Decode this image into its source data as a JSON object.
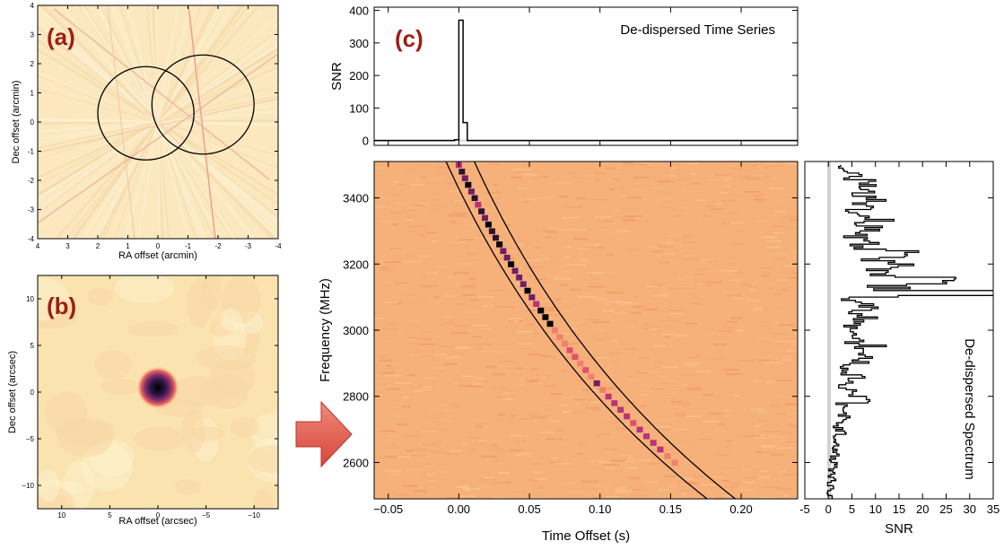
{
  "chart_data": [
    {
      "type": "heatmap",
      "panel_label": "(a)",
      "xlabel": "RA offset (arcmin)",
      "ylabel": "Dec offset (arcmin)",
      "xlim": [
        4,
        -4
      ],
      "ylim": [
        -4,
        4
      ],
      "xticks": [
        4,
        3,
        2,
        1,
        0,
        -1,
        -2,
        -3,
        -4
      ],
      "xticklabels": [
        "4",
        "3",
        "2",
        "1",
        "0",
        "-1",
        "-2",
        "-3",
        "-4"
      ],
      "yticks": [
        -4,
        -3,
        -2,
        -1,
        0,
        1,
        2,
        3,
        4
      ],
      "yticklabels": [
        "-4",
        "-3",
        "-2",
        "-1",
        "0",
        "1",
        "2",
        "3",
        "4"
      ],
      "circles": [
        {
          "center": [
            0.4,
            0.3
          ],
          "radius": 1.6
        },
        {
          "center": [
            -1.5,
            0.6
          ],
          "radius": 1.7
        }
      ],
      "source": {
        "ra": -0.85,
        "dec": 1.3
      }
    },
    {
      "type": "heatmap",
      "panel_label": "(b)",
      "xlabel": "RA offset (arcsec)",
      "ylabel": "Dec offset (arcsec)",
      "xlim": [
        12.5,
        -12.5
      ],
      "ylim": [
        -12.5,
        12.5
      ],
      "xticks": [
        10,
        5,
        0,
        -5,
        -10
      ],
      "xticklabels": [
        "10",
        "5",
        "0",
        "−5",
        "−10"
      ],
      "yticks": [
        -10,
        -5,
        0,
        5,
        10
      ],
      "yticklabels": [
        "−10",
        "−5",
        "0",
        "5",
        "10"
      ],
      "source": {
        "ra": 0,
        "dec": 0
      }
    },
    {
      "type": "line",
      "panel_label": "(c)",
      "title": "De-dispersed Time Series",
      "ylabel": "SNR",
      "xlim": [
        -0.06,
        0.24
      ],
      "ylim": [
        -15,
        410
      ],
      "yticks": [
        0,
        100,
        200,
        300,
        400
      ],
      "x": [
        -0.06,
        -0.003,
        -0.003,
        0.0,
        0.0,
        0.003,
        0.003,
        0.006,
        0.006,
        0.24
      ],
      "y": [
        0,
        0,
        2,
        2,
        370,
        370,
        55,
        55,
        0,
        0
      ]
    },
    {
      "type": "heatmap",
      "xlabel": "Time Offset (s)",
      "ylabel": "Frequency (MHz)",
      "xlim": [
        -0.06,
        0.24
      ],
      "ylim": [
        2490,
        3510
      ],
      "xticks": [
        -0.05,
        0,
        0.05,
        0.1,
        0.15,
        0.2
      ],
      "xticklabels": [
        "−0.05",
        "0.00",
        "0.05",
        "0.10",
        "0.15",
        "0.20"
      ],
      "yticks": [
        2600,
        2800,
        3000,
        3200,
        3400
      ],
      "sweep": {
        "t_at_3500MHz": 0.0,
        "t_at_2600MHz": 0.153,
        "f_top": 3500,
        "f_bottom": 2600
      },
      "window_offsets_s": [
        -0.008,
        0.012
      ]
    },
    {
      "type": "line",
      "title": "De-dispersed Spectrum",
      "xlabel": "SNR",
      "xlim": [
        -5,
        35
      ],
      "xticks": [
        -5,
        0,
        5,
        10,
        15,
        20,
        25,
        30,
        35
      ],
      "ylim": [
        2490,
        3510
      ],
      "y": [
        3500,
        3480,
        3460,
        3440,
        3420,
        3400,
        3380,
        3360,
        3340,
        3320,
        3300,
        3280,
        3260,
        3240,
        3220,
        3200,
        3180,
        3160,
        3140,
        3120,
        3100,
        3080,
        3060,
        3040,
        3020,
        3000,
        2980,
        2960,
        2940,
        2920,
        2900,
        2880,
        2860,
        2840,
        2820,
        2800,
        2780,
        2760,
        2740,
        2720,
        2700,
        2680,
        2660,
        2640,
        2620,
        2600,
        2580,
        2560,
        2540,
        2520,
        2500
      ],
      "x": [
        3,
        6,
        8,
        10,
        9,
        11,
        8,
        9,
        12,
        10,
        7,
        9,
        11,
        16,
        12,
        14,
        19,
        23,
        15,
        32,
        6,
        9,
        7,
        10,
        5,
        8,
        6,
        12,
        9,
        8,
        5,
        6,
        7,
        4,
        6,
        8,
        5,
        3,
        4,
        3,
        3,
        2,
        2,
        2,
        1,
        1.5,
        1,
        0.8,
        0.6,
        0.4,
        0.4
      ]
    }
  ]
}
